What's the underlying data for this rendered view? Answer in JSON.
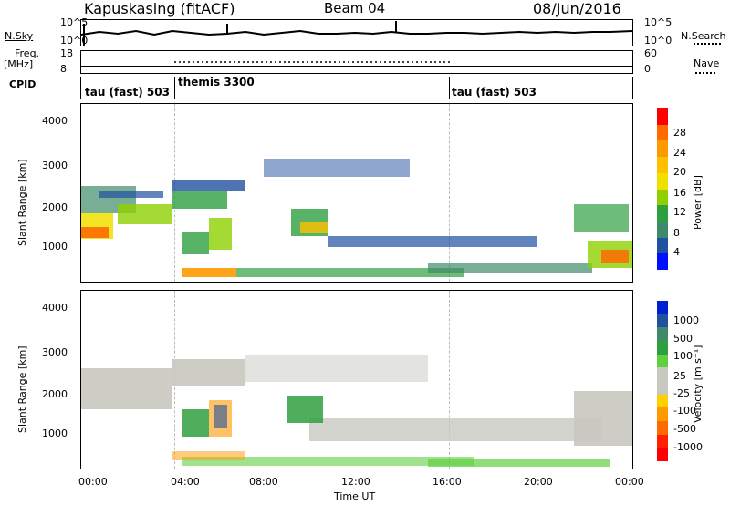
{
  "header": {
    "station": "Kapuskasing (fitACF)",
    "beam": "Beam 04",
    "date": "08/Jun/2016"
  },
  "top_panels": {
    "nsky_label": "N.Sky",
    "nsky_ticks": [
      "10^5",
      "10^0"
    ],
    "nsearch_label": "N.Search",
    "nsearch_ticks": [
      "10^5",
      "10^0"
    ],
    "freq_label": "Freq.",
    "freq_unit": "[MHz]",
    "freq_ticks": [
      "18",
      "8"
    ],
    "nave_label": "Nave",
    "nave_ticks": [
      "60",
      "0"
    ],
    "cpid_label": "CPID",
    "cpid_segments": [
      "tau (fast) 503",
      "themis 3300",
      "tau (fast) 503"
    ]
  },
  "power_panel": {
    "ylabel": "Slant Range [km]",
    "yticks": [
      "4000",
      "3000",
      "2000",
      "1000"
    ],
    "colorbar_label": "Power [dB]",
    "colorbar_ticks": [
      "28",
      "24",
      "20",
      "16",
      "12",
      "8",
      "4"
    ],
    "colors": [
      "#ff0000",
      "#ff6a00",
      "#ff9900",
      "#ffc000",
      "#f0e000",
      "#8fd000",
      "#2fa040",
      "#3f8a6a",
      "#2050a0",
      "#0010ff"
    ]
  },
  "velocity_panel": {
    "ylabel": "Slant Range [km]",
    "yticks": [
      "4000",
      "3000",
      "2000",
      "1000"
    ],
    "colorbar_label": "Velocity [m s⁻¹]",
    "colorbar_ticks": [
      "1000",
      "500",
      "100",
      "25",
      "-25",
      "-100",
      "-500",
      "-1000"
    ],
    "colors": [
      "#0020d0",
      "#2050a0",
      "#3f8a6a",
      "#2fa040",
      "#60d040",
      "#c8c8c0",
      "#c8c8c0",
      "#ffd000",
      "#ff9900",
      "#ff6a00",
      "#ff2000",
      "#ff0000"
    ]
  },
  "xaxis": {
    "ticks": [
      "00:00",
      "04:00",
      "08:00",
      "12:00",
      "16:00",
      "20:00",
      "00:00"
    ],
    "label": "Time UT"
  }
}
